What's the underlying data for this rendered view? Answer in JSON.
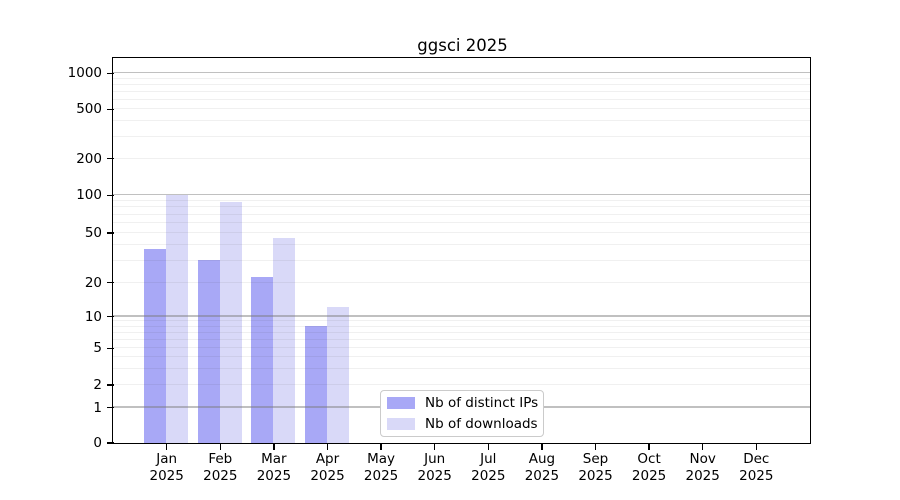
{
  "title": "ggsci 2025",
  "chart_data": {
    "type": "bar",
    "title": "ggsci 2025",
    "categories": [
      "Jan 2025",
      "Feb 2025",
      "Mar 2025",
      "Apr 2025",
      "May 2025",
      "Jun 2025",
      "Jul 2025",
      "Aug 2025",
      "Sep 2025",
      "Oct 2025",
      "Nov 2025",
      "Dec 2025"
    ],
    "x_tick_line1": [
      "Jan",
      "Feb",
      "Mar",
      "Apr",
      "May",
      "Jun",
      "Jul",
      "Aug",
      "Sep",
      "Oct",
      "Nov",
      "Dec"
    ],
    "x_tick_line2": "2025",
    "series": [
      {
        "name": "Nb of distinct IPs",
        "color": "#a8a8f6",
        "values": [
          37,
          30,
          22,
          8,
          0,
          0,
          0,
          0,
          0,
          0,
          0,
          0
        ]
      },
      {
        "name": "Nb of downloads",
        "color": "#d9d9f8",
        "values": [
          100,
          88,
          45,
          12,
          0,
          0,
          0,
          0,
          0,
          0,
          0,
          0
        ]
      }
    ],
    "yscale": "log",
    "yticks": [
      0,
      1,
      2,
      5,
      10,
      20,
      50,
      100,
      200,
      500,
      1000
    ],
    "ylim": [
      0,
      1300
    ],
    "xlabel": "",
    "ylabel": "",
    "grid": {
      "orientation": "horizontal",
      "major_color": "rgba(122,122,122,0.47)",
      "minor_color": "rgba(70,70,70,0.08)"
    },
    "legend": {
      "position": "lower-center",
      "entries": [
        "Nb of distinct IPs",
        "Nb of downloads"
      ]
    }
  },
  "colors": {
    "background": "#ffffff",
    "axis": "#000000",
    "text": "#000000",
    "legend_border": "#cbcbcb",
    "legend_background": "#ffffff"
  }
}
